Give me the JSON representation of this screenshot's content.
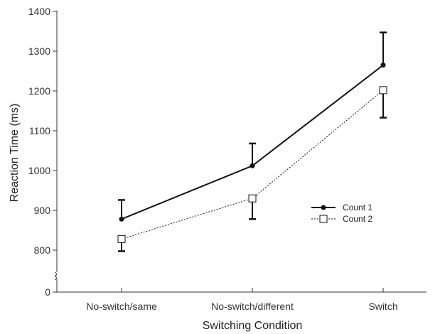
{
  "chart_data": {
    "type": "line",
    "xlabel": "Switching Condition",
    "ylabel": "Reaction Time (ms)",
    "categories": [
      "No-switch/same",
      "No-switch/different",
      "Switch"
    ],
    "ylim": [
      0,
      1400
    ],
    "yticks": [
      0,
      800,
      900,
      1000,
      1100,
      1200,
      1300,
      1400
    ],
    "axis_break": "between 0 and 800",
    "grid": false,
    "legend_position": "right",
    "series": [
      {
        "name": "Count 1",
        "values": [
          878,
          1012,
          1265
        ],
        "error_low": [
          830,
          956,
          1183
        ],
        "error_high": [
          926,
          1068,
          1347
        ],
        "style": "solid thick line, filled circle markers",
        "color": "#111111"
      },
      {
        "name": "Count 2",
        "values": [
          828,
          930,
          1202
        ],
        "error_low": [
          780,
          878,
          1133
        ],
        "error_high": [
          876,
          982,
          1271
        ],
        "style": "dotted line, open square markers",
        "color": "#111111"
      }
    ]
  }
}
